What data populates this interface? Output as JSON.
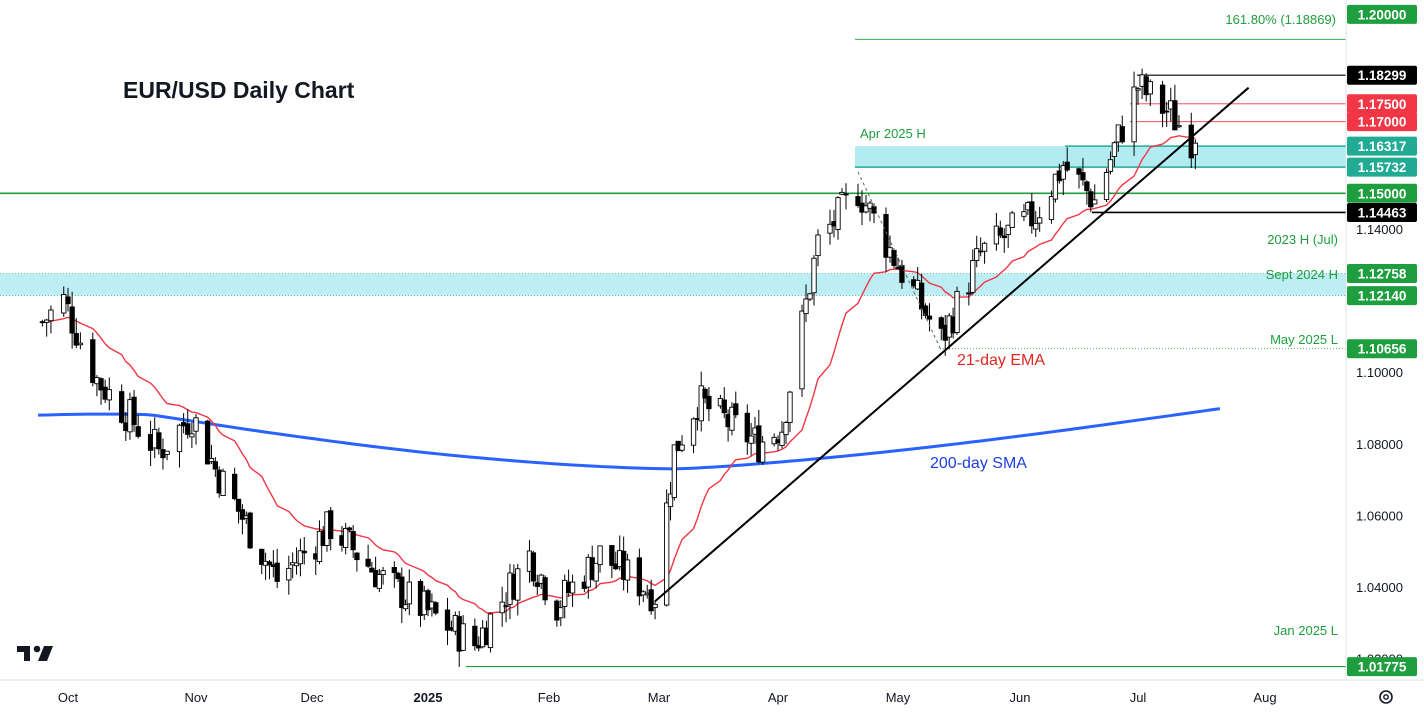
{
  "chart_data": {
    "type": "candlestick",
    "title": "EUR/USD Daily Chart",
    "symbol": "EUR/USD",
    "timeframe": "Daily",
    "x_tick_labels": [
      "Oct",
      "Nov",
      "Dec",
      "2025",
      "Feb",
      "Mar",
      "Apr",
      "May",
      "Jun",
      "Jul",
      "Aug"
    ],
    "y_tick_labels": [
      "1.14000",
      "1.10000",
      "1.08000",
      "1.06000",
      "1.04000",
      "1.02000"
    ],
    "ylim": [
      1.014,
      1.204
    ],
    "ohlc_anchors": [
      {
        "date": "2024-09-25",
        "close": 1.114
      },
      {
        "date": "2024-09-30",
        "close": 1.12
      },
      {
        "date": "2024-10-08",
        "close": 1.098
      },
      {
        "date": "2024-10-23",
        "close": 1.078
      },
      {
        "date": "2024-10-31",
        "close": 1.088
      },
      {
        "date": "2024-11-06",
        "close": 1.073
      },
      {
        "date": "2024-11-22",
        "close": 1.042
      },
      {
        "date": "2024-12-06",
        "close": 1.057
      },
      {
        "date": "2024-12-20",
        "close": 1.042
      },
      {
        "date": "2025-01-01",
        "close": 1.033
      },
      {
        "date": "2025-01-13",
        "close": 1.024
      },
      {
        "date": "2025-01-27",
        "close": 1.049
      },
      {
        "date": "2025-02-03",
        "close": 1.035
      },
      {
        "date": "2025-02-14",
        "close": 1.049
      },
      {
        "date": "2025-02-28",
        "close": 1.038
      },
      {
        "date": "2025-03-05",
        "close": 1.078
      },
      {
        "date": "2025-03-11",
        "close": 1.092
      },
      {
        "date": "2025-03-27",
        "close": 1.08
      },
      {
        "date": "2025-04-02",
        "close": 1.085
      },
      {
        "date": "2025-04-11",
        "close": 1.136
      },
      {
        "date": "2025-04-21",
        "close": 1.151
      },
      {
        "date": "2025-05-01",
        "close": 1.13
      },
      {
        "date": "2025-05-12",
        "close": 1.109
      },
      {
        "date": "2025-05-22",
        "close": 1.133
      },
      {
        "date": "2025-06-05",
        "close": 1.144
      },
      {
        "date": "2025-06-12",
        "close": 1.158
      },
      {
        "date": "2025-06-20",
        "close": 1.148
      },
      {
        "date": "2025-07-01",
        "close": 1.18
      },
      {
        "date": "2025-07-09",
        "close": 1.172
      },
      {
        "date": "2025-07-15",
        "close": 1.164
      }
    ],
    "levels": [
      {
        "label": "1.20000",
        "value": 1.2,
        "color": "#1e9e3e"
      },
      {
        "label": "1.18299",
        "value": 1.18299,
        "color": "#000000"
      },
      {
        "label": "1.17500",
        "value": 1.175,
        "color": "#f23645"
      },
      {
        "label": "1.17000",
        "value": 1.17,
        "color": "#f23645"
      },
      {
        "label": "1.16317",
        "value": 1.16317,
        "color": "#22ab94"
      },
      {
        "label": "1.15732",
        "value": 1.15732,
        "color": "#22ab94"
      },
      {
        "label": "1.15000",
        "value": 1.15,
        "color": "#1e9e3e"
      },
      {
        "label": "1.14463",
        "value": 1.14463,
        "color": "#000000"
      },
      {
        "label": "1.12758",
        "value": 1.12758,
        "color": "#1e9e3e"
      },
      {
        "label": "1.12140",
        "value": 1.1214,
        "color": "#1e9e3e"
      },
      {
        "label": "1.10656",
        "value": 1.10656,
        "color": "#1e9e3e"
      },
      {
        "label": "1.01775",
        "value": 1.01775,
        "color": "#1e9e3e"
      }
    ],
    "annotations": {
      "fib": "161.80% (1.18869)",
      "apr_high": "Apr 2025 H",
      "h2023": "2023 H (Jul)",
      "sept2024": "Sept 2024 H",
      "may2025": "May 2025 L",
      "jan2025": "Jan 2025 L",
      "ema": "21-day EMA",
      "sma": "200-day SMA"
    },
    "indicators": {
      "ema_period": 21,
      "sma_period": 200,
      "sma_range": [
        1.088,
        1.09
      ],
      "sma_low": 1.073
    },
    "colors": {
      "up_candle": "#ffffff",
      "down_candle": "#000000",
      "ema": "#f23645",
      "sma": "#2962ff",
      "support_zone": "#b2ebf2",
      "level_green": "#1e9e3e",
      "trendline": "#000000"
    },
    "logo": "TradingView"
  }
}
